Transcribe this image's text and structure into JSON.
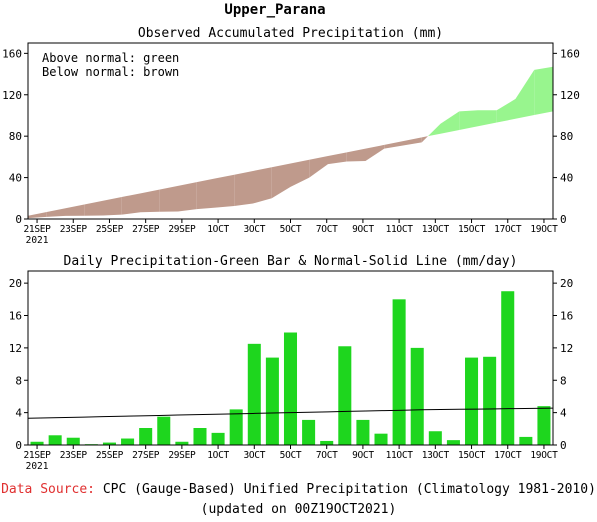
{
  "page": {
    "title": "Upper_Parana",
    "source_label": "Data Source:",
    "source_text": "CPC (Gauge-Based) Unified Precipitation (Climatology 1981-2010)",
    "updated_text": "(updated on 00Z19OCT2021)"
  },
  "colors": {
    "above_normal": "#98f58e",
    "below_normal": "#bf9a8c",
    "bar": "#1ed61e",
    "normal_line": "#000000",
    "source_label": "#e03030"
  },
  "chart_data": [
    {
      "type": "area",
      "title": "Observed Accumulated Precipitation (mm)",
      "legend": [
        "Above normal: green",
        "Below normal: brown"
      ],
      "legend_position": "top-left",
      "x": [
        0,
        1,
        2,
        3,
        4,
        5,
        6,
        7,
        8,
        9,
        10,
        11,
        12,
        13,
        14,
        15,
        16,
        17,
        18,
        19,
        20,
        21,
        22,
        23,
        24,
        25,
        26,
        27,
        28
      ],
      "x_tick_labels": [
        "21SEP",
        "23SEP",
        "25SEP",
        "27SEP",
        "29SEP",
        "1OCT",
        "3OCT",
        "5OCT",
        "7OCT",
        "9OCT",
        "11OCT",
        "13OCT",
        "15OCT",
        "17OCT",
        "19OCT"
      ],
      "x_tick_sublabel": "2021",
      "ylim": [
        0,
        170
      ],
      "yticks": [
        0,
        40,
        80,
        120,
        160
      ],
      "series": [
        {
          "name": "Observed",
          "values": [
            0.8,
            2.0,
            3.0,
            3.1,
            3.4,
            4.2,
            6.5,
            7.0,
            7.3,
            9.5,
            11,
            12.5,
            15,
            20,
            31,
            40,
            53,
            55.5,
            56,
            68,
            71,
            74,
            92,
            104,
            105,
            105,
            116,
            144,
            147
          ]
        },
        {
          "name": "Normal",
          "values": [
            3.2,
            6.8,
            10.4,
            14,
            17.6,
            21.2,
            24.8,
            28.4,
            32,
            35.6,
            39.2,
            42.8,
            46.4,
            50,
            53.6,
            57.2,
            60.8,
            64.4,
            68,
            71.6,
            75.2,
            78.8,
            82.4,
            86,
            89.6,
            93.2,
            96.8,
            100.4,
            104
          ]
        }
      ]
    },
    {
      "type": "bar",
      "title": "Daily Precipitation-Green Bar & Normal-Solid Line (mm/day)",
      "x": [
        0,
        1,
        2,
        3,
        4,
        5,
        6,
        7,
        8,
        9,
        10,
        11,
        12,
        13,
        14,
        15,
        16,
        17,
        18,
        19,
        20,
        21,
        22,
        23,
        24,
        25,
        26,
        27,
        28
      ],
      "x_tick_labels": [
        "21SEP",
        "23SEP",
        "25SEP",
        "27SEP",
        "29SEP",
        "1OCT",
        "3OCT",
        "5OCT",
        "7OCT",
        "9OCT",
        "11OCT",
        "13OCT",
        "15OCT",
        "17OCT",
        "19OCT"
      ],
      "x_tick_sublabel": "2021",
      "ylim": [
        0,
        21.5
      ],
      "yticks": [
        0,
        4,
        8,
        12,
        16,
        20
      ],
      "series": [
        {
          "name": "Daily Precipitation",
          "values": [
            0.4,
            1.2,
            0.9,
            0.1,
            0.3,
            0.8,
            2.1,
            3.5,
            0.4,
            2.1,
            1.5,
            4.4,
            12.5,
            10.8,
            13.9,
            3.1,
            0.5,
            12.2,
            3.1,
            1.4,
            18.0,
            12.0,
            1.7,
            0.6,
            10.8,
            10.9,
            19.0,
            1.0,
            4.8
          ]
        },
        {
          "name": "Normal",
          "values": [
            3.3,
            3.35,
            3.4,
            3.45,
            3.5,
            3.55,
            3.6,
            3.65,
            3.7,
            3.75,
            3.8,
            3.85,
            3.9,
            3.95,
            4.0,
            4.05,
            4.1,
            4.15,
            4.2,
            4.25,
            4.3,
            4.35,
            4.38,
            4.41,
            4.44,
            4.47,
            4.5,
            4.53,
            4.55
          ]
        }
      ]
    }
  ]
}
